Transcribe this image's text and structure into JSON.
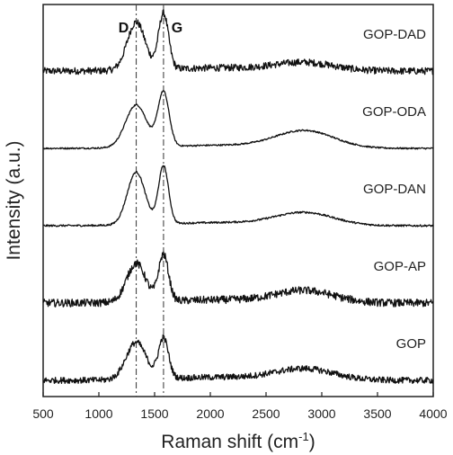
{
  "chart_data": {
    "type": "line",
    "title": "",
    "xlabel": "Raman shift (cm",
    "xlabel_sup": "-1",
    "xlabel_suffix": ")",
    "ylabel": "Intensity (a.u.)",
    "xlim": [
      500,
      4000
    ],
    "x_ticks": [
      500,
      1000,
      1500,
      2000,
      2500,
      3000,
      3500,
      4000
    ],
    "y_ticks_shown": false,
    "grid": false,
    "legend": "none",
    "vertical_markers": [
      {
        "label": "D",
        "x": 1335
      },
      {
        "label": "G",
        "x": 1580
      }
    ],
    "series_shape": {
      "D_center": 1335,
      "G_center": 1580,
      "band_2D_center": 2850
    },
    "series": [
      {
        "name": "GOP-DAD",
        "offset": 4.0,
        "d_height": 0.62,
        "g_height": 0.72,
        "d_width": 80,
        "g_width": 45,
        "band_2D_height": 0.1,
        "noise": 0.045
      },
      {
        "name": "GOP-ODA",
        "offset": 3.0,
        "d_height": 0.55,
        "g_height": 0.7,
        "d_width": 95,
        "g_width": 50,
        "band_2D_height": 0.22,
        "noise": 0.01
      },
      {
        "name": "GOP-DAN",
        "offset": 2.0,
        "d_height": 0.68,
        "g_height": 0.75,
        "d_width": 80,
        "g_width": 45,
        "band_2D_height": 0.16,
        "noise": 0.012
      },
      {
        "name": "GOP-AP",
        "offset": 1.0,
        "d_height": 0.5,
        "g_height": 0.6,
        "d_width": 85,
        "g_width": 45,
        "band_2D_height": 0.15,
        "noise": 0.05
      },
      {
        "name": "GOP",
        "offset": 0.0,
        "d_height": 0.48,
        "g_height": 0.52,
        "d_width": 90,
        "g_width": 45,
        "band_2D_height": 0.14,
        "noise": 0.04
      }
    ]
  }
}
